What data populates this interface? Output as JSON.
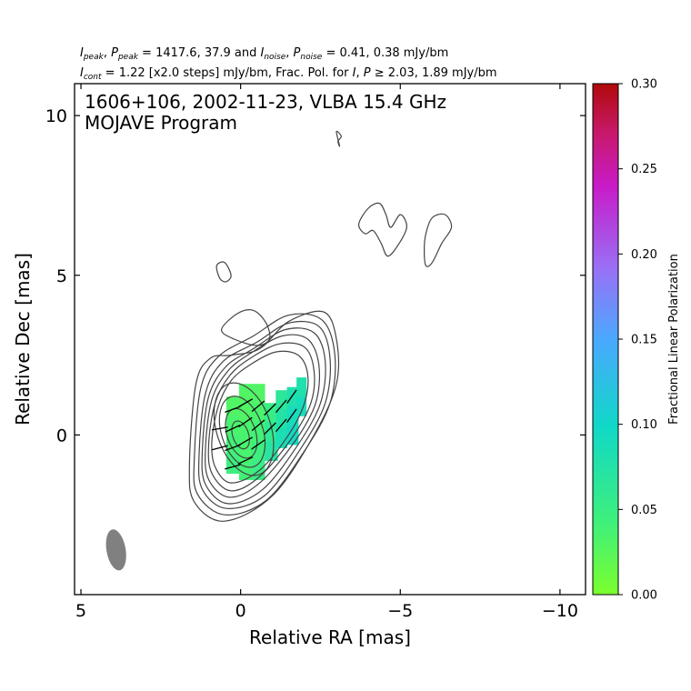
{
  "header": {
    "line1": "I_peak, P_peak = 1417.6, 37.9 and I_noise, P_noise = 0.41, 0.38 mJy/bm",
    "line1_parts": {
      "i": "I",
      "i_sub": "peak",
      "p": "P",
      "p_sub": "peak",
      "vals": " = 1417.6, 37.9 and ",
      "i2": "I",
      "i2_sub": "noise",
      "p2": "P",
      "p2_sub": "noise",
      "vals2": " = 0.41, 0.38 mJy/bm"
    },
    "line2_parts": {
      "i": "I",
      "i_sub": "cont",
      "text1": " = 1.22 [x2.0 steps] mJy/bm, Frac. Pol. for ",
      "i3": "I",
      "sep": ", ",
      "p3": "P",
      "text2": " ≥ 2.03, 1.89 mJy/bm"
    }
  },
  "chart_data": {
    "type": "contour",
    "annotation_line1": "1606+106, 2002-11-23, VLBA 15.4 GHz",
    "annotation_line2": "MOJAVE Program",
    "xlabel": "Relative RA [mas]",
    "ylabel": "Relative Dec [mas]",
    "xlim": [
      5.2,
      -10.8
    ],
    "ylim": [
      -5.0,
      11.0
    ],
    "xticks": [
      5,
      0,
      -5,
      -10
    ],
    "xtick_labels": [
      "5",
      "0",
      "−5",
      "−10"
    ],
    "yticks": [
      0,
      5,
      10
    ],
    "ytick_labels": [
      "0",
      "5",
      "10"
    ],
    "colorbar": {
      "label": "Fractional Linear Polarization",
      "range": [
        0.0,
        0.3
      ],
      "ticks": [
        0.0,
        0.05,
        0.1,
        0.15,
        0.2,
        0.25,
        0.3
      ],
      "tick_labels": [
        "0.00",
        "0.05",
        "0.10",
        "0.15",
        "0.20",
        "0.25",
        "0.30"
      ],
      "colors": [
        "#7cff2e",
        "#3ff07a",
        "#10d8c8",
        "#4aa8ff",
        "#9a6ff5",
        "#c81bc8",
        "#c8196e",
        "#b00a0a"
      ]
    },
    "contour_color": "#444444",
    "beam": {
      "x": 3.9,
      "y": -3.6,
      "major": 1.3,
      "minor": 0.6,
      "pa_deg": -10,
      "color": "#808080"
    },
    "core_contours": [
      {
        "cx": 0.0,
        "cy": 0.0,
        "rx": 0.25,
        "ry": 0.45
      },
      {
        "cx": -0.02,
        "cy": 0.05,
        "rx": 0.45,
        "ry": 0.8
      },
      {
        "cx": -0.05,
        "cy": 0.1,
        "rx": 0.65,
        "ry": 1.15
      },
      {
        "cx": -0.1,
        "cy": 0.18,
        "rx": 0.85,
        "ry": 1.5
      }
    ],
    "jet_contours": [
      [
        [
          0.9,
          -0.2
        ],
        [
          0.7,
          0.9
        ],
        [
          0.3,
          1.7
        ],
        [
          -0.3,
          2.2
        ],
        [
          -1.1,
          2.6
        ],
        [
          -1.8,
          2.5
        ],
        [
          -2.1,
          1.9
        ],
        [
          -2.0,
          1.0
        ],
        [
          -1.5,
          0.0
        ],
        [
          -0.6,
          -1.1
        ],
        [
          0.3,
          -1.5
        ],
        [
          0.8,
          -1.0
        ]
      ],
      [
        [
          1.0,
          -0.3
        ],
        [
          0.8,
          1.0
        ],
        [
          0.35,
          1.85
        ],
        [
          -0.3,
          2.4
        ],
        [
          -1.2,
          2.85
        ],
        [
          -2.0,
          2.75
        ],
        [
          -2.3,
          2.0
        ],
        [
          -2.2,
          1.0
        ],
        [
          -1.6,
          -0.1
        ],
        [
          -0.6,
          -1.3
        ],
        [
          0.3,
          -1.75
        ],
        [
          0.9,
          -1.2
        ]
      ],
      [
        [
          1.1,
          -0.4
        ],
        [
          0.9,
          1.1
        ],
        [
          0.4,
          2.0
        ],
        [
          -0.3,
          2.55
        ],
        [
          -1.3,
          3.1
        ],
        [
          -2.1,
          3.0
        ],
        [
          -2.45,
          2.2
        ],
        [
          -2.35,
          1.0
        ],
        [
          -1.7,
          -0.2
        ],
        [
          -0.6,
          -1.5
        ],
        [
          0.35,
          -1.95
        ],
        [
          1.0,
          -1.4
        ]
      ],
      [
        [
          1.2,
          -0.5
        ],
        [
          1.0,
          1.2
        ],
        [
          0.45,
          2.15
        ],
        [
          -0.4,
          2.7
        ],
        [
          -1.4,
          3.3
        ],
        [
          -2.3,
          3.2
        ],
        [
          -2.65,
          2.3
        ],
        [
          -2.5,
          1.0
        ],
        [
          -1.8,
          -0.3
        ],
        [
          -0.7,
          -1.7
        ],
        [
          0.4,
          -2.15
        ],
        [
          1.1,
          -1.55
        ]
      ],
      [
        [
          1.3,
          -0.6
        ],
        [
          1.1,
          1.3
        ],
        [
          0.55,
          2.3
        ],
        [
          -0.5,
          2.9
        ],
        [
          -1.5,
          3.5
        ],
        [
          -2.45,
          3.4
        ],
        [
          -2.8,
          2.4
        ],
        [
          -2.65,
          1.0
        ],
        [
          -1.9,
          -0.4
        ],
        [
          -0.75,
          -1.9
        ],
        [
          0.45,
          -2.3
        ],
        [
          1.2,
          -1.7
        ]
      ],
      [
        [
          1.45,
          -0.75
        ],
        [
          1.25,
          1.45
        ],
        [
          0.7,
          2.45
        ],
        [
          -0.4,
          3.1
        ],
        [
          -1.5,
          3.75
        ],
        [
          -2.55,
          3.6
        ],
        [
          -2.95,
          2.5
        ],
        [
          -2.8,
          1.0
        ],
        [
          -2.0,
          -0.5
        ],
        [
          -0.8,
          -2.05
        ],
        [
          0.5,
          -2.5
        ],
        [
          1.35,
          -1.85
        ]
      ],
      [
        [
          1.6,
          -0.9
        ],
        [
          1.4,
          1.6
        ],
        [
          0.95,
          2.4
        ],
        [
          0.3,
          2.5
        ],
        [
          -0.6,
          2.7
        ],
        [
          -1.5,
          3.55
        ],
        [
          -2.6,
          3.85
        ],
        [
          -3.0,
          3.0
        ],
        [
          -3.0,
          1.6
        ],
        [
          -2.3,
          0.0
        ],
        [
          -1.0,
          -1.9
        ],
        [
          0.5,
          -2.7
        ],
        [
          1.45,
          -2.1
        ]
      ]
    ],
    "islands": [
      [
        [
          0.6,
          3.3
        ],
        [
          0.1,
          3.8
        ],
        [
          -0.4,
          3.9
        ],
        [
          -0.8,
          3.5
        ],
        [
          -0.9,
          3.0
        ],
        [
          -0.5,
          2.8
        ],
        [
          0.2,
          3.0
        ]
      ],
      [
        [
          0.3,
          5.0
        ],
        [
          0.5,
          5.4
        ],
        [
          0.75,
          5.3
        ],
        [
          0.65,
          4.9
        ],
        [
          0.45,
          4.8
        ]
      ],
      [
        [
          -3.7,
          6.6
        ],
        [
          -4.0,
          7.1
        ],
        [
          -4.35,
          7.25
        ],
        [
          -4.55,
          6.9
        ],
        [
          -4.7,
          6.5
        ],
        [
          -5.0,
          6.9
        ],
        [
          -5.2,
          6.5
        ],
        [
          -4.9,
          5.9
        ],
        [
          -4.6,
          5.6
        ],
        [
          -4.4,
          6.0
        ],
        [
          -4.15,
          6.4
        ],
        [
          -3.9,
          6.3
        ]
      ],
      [
        [
          -5.8,
          6.3
        ],
        [
          -6.0,
          6.8
        ],
        [
          -6.4,
          6.9
        ],
        [
          -6.6,
          6.5
        ],
        [
          -6.3,
          6.0
        ],
        [
          -6.0,
          5.4
        ],
        [
          -5.8,
          5.3
        ],
        [
          -5.75,
          5.8
        ]
      ],
      [
        [
          -3.0,
          9.5
        ],
        [
          -3.15,
          9.35
        ],
        [
          -3.05,
          9.2
        ],
        [
          -3.1,
          9.05
        ]
      ]
    ],
    "polarization_cells": [
      {
        "x": 0.45,
        "y": 0.9,
        "w": 0.4,
        "h": 0.6,
        "frac": 0.03
      },
      {
        "x": 0.45,
        "y": 0.3,
        "w": 0.4,
        "h": 0.6,
        "frac": 0.035
      },
      {
        "x": 0.45,
        "y": -0.3,
        "w": 0.4,
        "h": 0.6,
        "frac": 0.04
      },
      {
        "x": 0.45,
        "y": -0.9,
        "w": 0.4,
        "h": 0.6,
        "frac": 0.045
      },
      {
        "x": 0.05,
        "y": 1.3,
        "w": 0.4,
        "h": 0.6,
        "frac": 0.03
      },
      {
        "x": 0.05,
        "y": 0.7,
        "w": 0.4,
        "h": 0.6,
        "frac": 0.03
      },
      {
        "x": 0.05,
        "y": 0.1,
        "w": 0.4,
        "h": 0.6,
        "frac": 0.035
      },
      {
        "x": 0.05,
        "y": -0.5,
        "w": 0.4,
        "h": 0.6,
        "frac": 0.035
      },
      {
        "x": 0.05,
        "y": -1.1,
        "w": 0.4,
        "h": 0.6,
        "frac": 0.04
      },
      {
        "x": -0.35,
        "y": 1.3,
        "w": 0.4,
        "h": 0.6,
        "frac": 0.03
      },
      {
        "x": -0.35,
        "y": 0.7,
        "w": 0.4,
        "h": 0.6,
        "frac": 0.035
      },
      {
        "x": -0.35,
        "y": 0.1,
        "w": 0.4,
        "h": 0.6,
        "frac": 0.04
      },
      {
        "x": -0.35,
        "y": -0.5,
        "w": 0.4,
        "h": 0.6,
        "frac": 0.045
      },
      {
        "x": -0.35,
        "y": -1.1,
        "w": 0.4,
        "h": 0.6,
        "frac": 0.05
      },
      {
        "x": -0.75,
        "y": 0.7,
        "w": 0.4,
        "h": 0.6,
        "frac": 0.05
      },
      {
        "x": -0.75,
        "y": 0.1,
        "w": 0.4,
        "h": 0.6,
        "frac": 0.06
      },
      {
        "x": -0.75,
        "y": -0.5,
        "w": 0.4,
        "h": 0.6,
        "frac": 0.07
      },
      {
        "x": -1.1,
        "y": 1.1,
        "w": 0.35,
        "h": 0.6,
        "frac": 0.065
      },
      {
        "x": -1.1,
        "y": 0.5,
        "w": 0.35,
        "h": 0.6,
        "frac": 0.075
      },
      {
        "x": -1.1,
        "y": -0.1,
        "w": 0.35,
        "h": 0.6,
        "frac": 0.085
      },
      {
        "x": -1.45,
        "y": 1.2,
        "w": 0.35,
        "h": 0.6,
        "frac": 0.08
      },
      {
        "x": -1.45,
        "y": 0.6,
        "w": 0.35,
        "h": 0.6,
        "frac": 0.09
      },
      {
        "x": -1.45,
        "y": 0.0,
        "w": 0.35,
        "h": 0.6,
        "frac": 0.095
      },
      {
        "x": -1.75,
        "y": 1.5,
        "w": 0.3,
        "h": 0.6,
        "frac": 0.08
      },
      {
        "x": -1.75,
        "y": 0.9,
        "w": 0.3,
        "h": 0.6,
        "frac": 0.09
      }
    ],
    "evpa_ticks": [
      {
        "x": 0.65,
        "y": 0.2,
        "angle_deg": 10
      },
      {
        "x": 0.65,
        "y": -0.4,
        "angle_deg": 15
      },
      {
        "x": 0.25,
        "y": 0.8,
        "angle_deg": 20
      },
      {
        "x": 0.25,
        "y": 0.2,
        "angle_deg": 25
      },
      {
        "x": 0.25,
        "y": -0.4,
        "angle_deg": 20
      },
      {
        "x": 0.25,
        "y": -1.0,
        "angle_deg": 15
      },
      {
        "x": -0.15,
        "y": 1.0,
        "angle_deg": 30
      },
      {
        "x": -0.15,
        "y": 0.4,
        "angle_deg": 35
      },
      {
        "x": -0.15,
        "y": -0.2,
        "angle_deg": 30
      },
      {
        "x": -0.15,
        "y": -0.8,
        "angle_deg": 25
      },
      {
        "x": -0.55,
        "y": 0.9,
        "angle_deg": 40
      },
      {
        "x": -0.55,
        "y": 0.3,
        "angle_deg": 40
      },
      {
        "x": -0.55,
        "y": -0.3,
        "angle_deg": 35
      },
      {
        "x": -0.92,
        "y": 0.8,
        "angle_deg": 45
      },
      {
        "x": -0.92,
        "y": 0.2,
        "angle_deg": 45
      },
      {
        "x": -1.27,
        "y": 0.9,
        "angle_deg": 50
      },
      {
        "x": -1.27,
        "y": 0.3,
        "angle_deg": 50
      },
      {
        "x": -1.6,
        "y": 1.2,
        "angle_deg": 55
      },
      {
        "x": -1.6,
        "y": 0.6,
        "angle_deg": 55
      }
    ]
  }
}
